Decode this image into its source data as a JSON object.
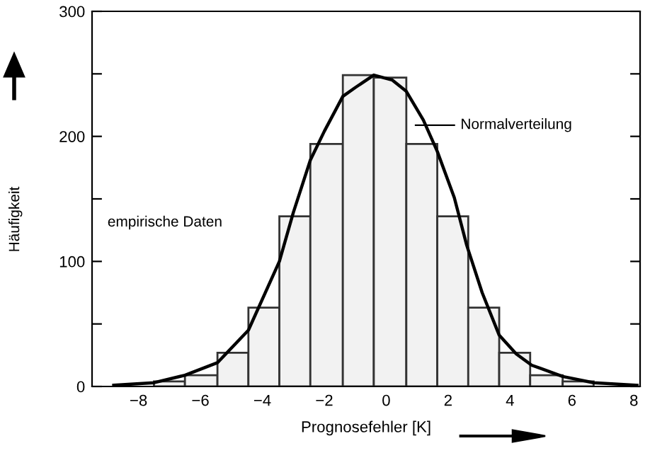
{
  "chart_data": {
    "type": "histogram",
    "xlabel": "Prognosefehler [K]",
    "ylabel": "Häufigkeit",
    "series": [
      {
        "color": "#f2f2f2",
        "bins": [
          -7.5,
          -6.5,
          -5.45,
          -4.45,
          -3.45,
          -2.45,
          -1.4,
          -0.4,
          0.65,
          1.65,
          2.65,
          3.65,
          4.65,
          5.7,
          6.7
        ],
        "values": [
          4,
          9,
          27,
          63,
          136,
          194,
          249,
          247,
          194,
          136,
          63,
          27,
          9,
          4
        ]
      },
      {
        "type": "line",
        "color": "#000000",
        "x": [
          -8.8,
          -7.5,
          -6.5,
          -5.45,
          -4.45,
          -3.45,
          -3.0,
          -2.45,
          -2.0,
          -1.4,
          -1.0,
          -0.4,
          0.2,
          0.65,
          1.2,
          1.65,
          2.2,
          2.6,
          3.1,
          3.65,
          4.2,
          4.7,
          5.7,
          6.7,
          8.1
        ],
        "values": [
          1,
          3,
          9,
          19,
          45,
          100,
          139,
          181,
          204,
          232,
          239,
          249,
          245,
          236,
          213,
          188,
          151,
          113,
          75,
          41,
          26,
          17,
          8,
          3,
          1
        ]
      }
    ],
    "annotations": [
      "Normalverteilung",
      "empirische Daten"
    ],
    "xlim": [
      -9.5,
      8.2
    ],
    "ylim": [
      0,
      300
    ],
    "xticks": [
      -8,
      -6,
      -4,
      -2,
      0,
      2,
      4,
      6,
      8
    ],
    "yticks": [
      0,
      {
        "value": 50,
        "label": null
      },
      100,
      {
        "value": 150,
        "label": null
      },
      200,
      {
        "value": 250,
        "label": null
      },
      300
    ],
    "grid": false,
    "legend": false
  }
}
